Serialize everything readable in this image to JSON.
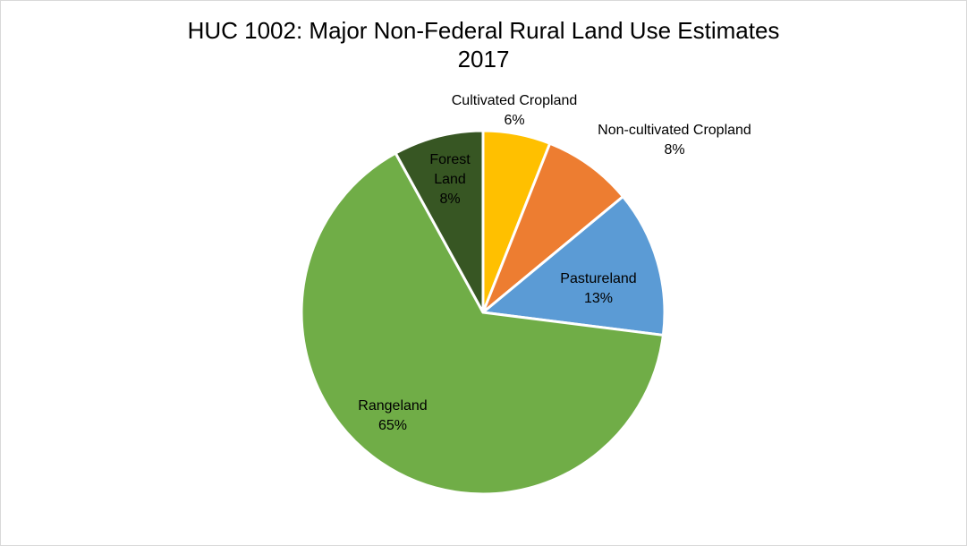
{
  "chart_data": {
    "type": "pie",
    "title": "HUC 1002: Major Non-Federal Rural Land Use Estimates",
    "subtitle": "2017",
    "start_angle_deg": 0,
    "direction": "clockwise",
    "slices": [
      {
        "name": "Cultivated Cropland",
        "value": 6,
        "label": "6%",
        "color": "#FFC000"
      },
      {
        "name": "Non-cultivated Cropland",
        "value": 8,
        "label": "8%",
        "color": "#ED7D31"
      },
      {
        "name": "Pastureland",
        "value": 13,
        "label": "13%",
        "color": "#5B9BD5"
      },
      {
        "name": "Rangeland",
        "value": 65,
        "label": "65%",
        "color": "#70AD47"
      },
      {
        "name": "Forest Land",
        "value": 8,
        "label": "8%",
        "color": "#375623"
      }
    ],
    "slice_border_color": "#FFFFFF"
  }
}
